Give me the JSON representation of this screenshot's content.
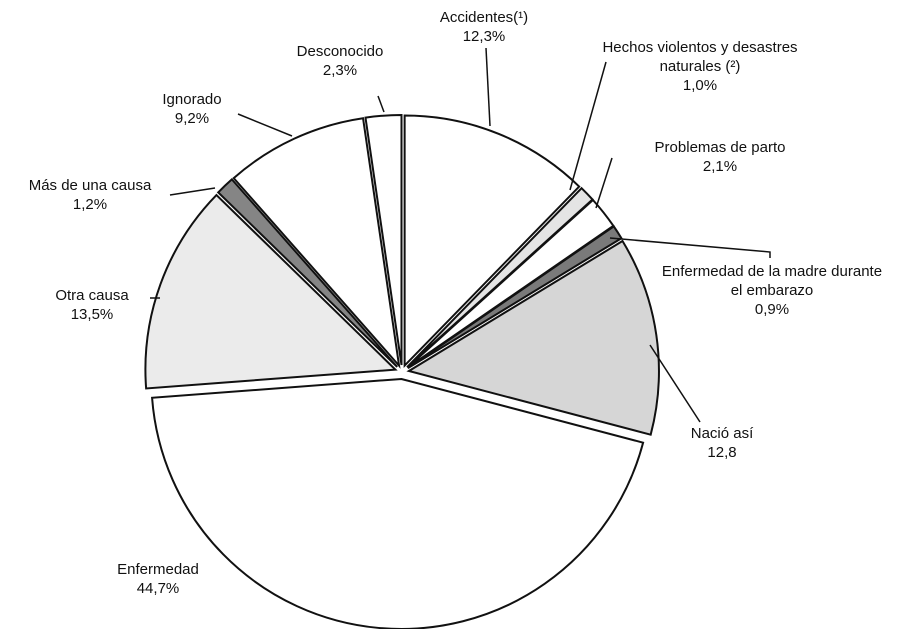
{
  "chart_data": {
    "type": "pie",
    "categories": [
      "Accidentes(¹)",
      "Hechos violentos y desastres naturales (²)",
      "Problemas de parto",
      "Enfermedad de la madre durante el embarazo",
      "Nació así",
      "Enfermedad",
      "Otra causa",
      "Más de una causa",
      "Ignorado",
      "Desconocido"
    ],
    "values": [
      12.3,
      1.0,
      2.1,
      0.9,
      12.8,
      44.7,
      13.5,
      1.2,
      9.2,
      2.3
    ],
    "value_labels": [
      "12,3%",
      "1,0%",
      "2,1%",
      "0,9%",
      "12,8",
      "44,7%",
      "13,5%",
      "1,2%",
      "9,2%",
      "2,3%"
    ],
    "colors": [
      "#ffffff",
      "#e4e4e4",
      "#ffffff",
      "#7a7a7a",
      "#d6d6d6",
      "#ffffff",
      "#ebebeb",
      "#858585",
      "#ffffff",
      "#ffffff"
    ]
  }
}
